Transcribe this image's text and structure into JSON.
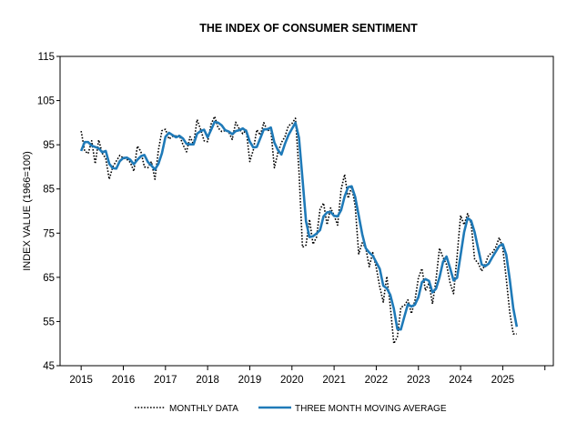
{
  "chart_data": {
    "type": "line",
    "title": "THE INDEX OF CONSUMER  SENTIMENT",
    "ylabel": "INDEX VALUE  (1966=100)",
    "xlabel": "",
    "ylim": [
      45,
      115
    ],
    "yticks": [
      "45",
      "55",
      "65",
      "75",
      "85",
      "95",
      "105",
      "115"
    ],
    "xlim": [
      2014.5,
      2026.2
    ],
    "xticks": [
      "2015",
      "2016",
      "2017",
      "2018",
      "2019",
      "2020",
      "2021",
      "2022",
      "2023",
      "2024",
      "2025"
    ],
    "grid": false,
    "legend": "bottom",
    "series": [
      {
        "name": "MONTHLY DATA",
        "color": "#000000",
        "style": "dotted",
        "start_year": 2015,
        "values": [
          98.1,
          93.6,
          93.0,
          95.9,
          90.7,
          96.1,
          93.1,
          91.9,
          87.2,
          90.0,
          91.3,
          92.6,
          92.0,
          91.7,
          91.0,
          89.0,
          94.7,
          93.5,
          90.0,
          89.8,
          91.2,
          87.2,
          93.8,
          98.2,
          98.5,
          96.3,
          96.9,
          97.0,
          97.1,
          95.0,
          93.4,
          96.8,
          95.1,
          100.7,
          98.5,
          95.9,
          95.7,
          99.7,
          101.4,
          98.8,
          98.0,
          98.2,
          97.9,
          96.2,
          100.1,
          98.6,
          97.5,
          98.3,
          91.2,
          93.8,
          98.4,
          97.2,
          100.0,
          98.2,
          98.4,
          89.8,
          93.2,
          95.5,
          96.8,
          99.3,
          99.8,
          101.0,
          89.1,
          71.8,
          72.3,
          78.1,
          72.5,
          74.1,
          80.4,
          81.8,
          76.9,
          80.7,
          79.0,
          76.8,
          84.9,
          88.3,
          82.9,
          85.5,
          81.2,
          70.3,
          72.8,
          71.7,
          67.4,
          70.6,
          67.2,
          62.8,
          59.4,
          65.2,
          58.4,
          50.0,
          51.5,
          58.2,
          58.6,
          59.9,
          56.8,
          59.7,
          64.9,
          67.0,
          62.0,
          63.7,
          59.0,
          64.4,
          71.6,
          69.5,
          67.9,
          63.8,
          61.3,
          69.7,
          79.0,
          76.9,
          79.4,
          77.2,
          69.1,
          68.2,
          66.4,
          67.9,
          70.1,
          70.5,
          71.8,
          74.0,
          71.7,
          64.7,
          57.0,
          52.2,
          52.2
        ],
        "marks": {
          "style": "dotted line",
          "data_labels": false
        }
      },
      {
        "name": "THREE MONTH MOVING AVERAGE",
        "color": "#1f7ab8",
        "style": "solid",
        "start_year": 2015,
        "values": [
          93.6,
          95.6,
          95.6,
          94.8,
          94.5,
          94.2,
          93.3,
          93.6,
          90.7,
          89.7,
          89.6,
          91.3,
          92.0,
          92.1,
          91.6,
          90.6,
          91.6,
          92.4,
          92.7,
          91.1,
          90.3,
          89.4,
          90.7,
          93.1,
          96.8,
          97.7,
          97.2,
          96.7,
          97.0,
          96.4,
          95.2,
          95.1,
          95.1,
          97.5,
          98.1,
          98.4,
          96.7,
          98.4,
          100.2,
          100.0,
          99.4,
          98.3,
          98.0,
          97.4,
          98.1,
          98.3,
          98.7,
          98.1,
          95.7,
          94.4,
          94.5,
          96.5,
          98.5,
          98.5,
          98.9,
          95.5,
          93.8,
          92.8,
          95.2,
          97.2,
          98.6,
          100.0,
          96.6,
          87.3,
          77.7,
          74.1,
          74.3,
          74.9,
          75.7,
          78.8,
          79.7,
          79.8,
          78.9,
          78.8,
          80.2,
          83.3,
          85.4,
          85.6,
          83.2,
          79.0,
          74.8,
          71.6,
          70.6,
          69.9,
          68.4,
          66.9,
          63.1,
          62.5,
          61.0,
          57.9,
          53.3,
          53.2,
          56.1,
          58.9,
          58.4,
          58.8,
          60.5,
          63.9,
          64.6,
          64.2,
          61.6,
          62.4,
          65.0,
          68.5,
          69.7,
          67.1,
          64.3,
          64.9,
          70.0,
          75.2,
          78.4,
          77.8,
          75.2,
          71.5,
          67.9,
          67.5,
          68.1,
          69.5,
          70.8,
          72.1,
          72.5,
          70.1,
          64.5,
          58.0,
          53.8
        ],
        "marks": {
          "style": "solid line",
          "data_labels": false
        }
      }
    ]
  }
}
